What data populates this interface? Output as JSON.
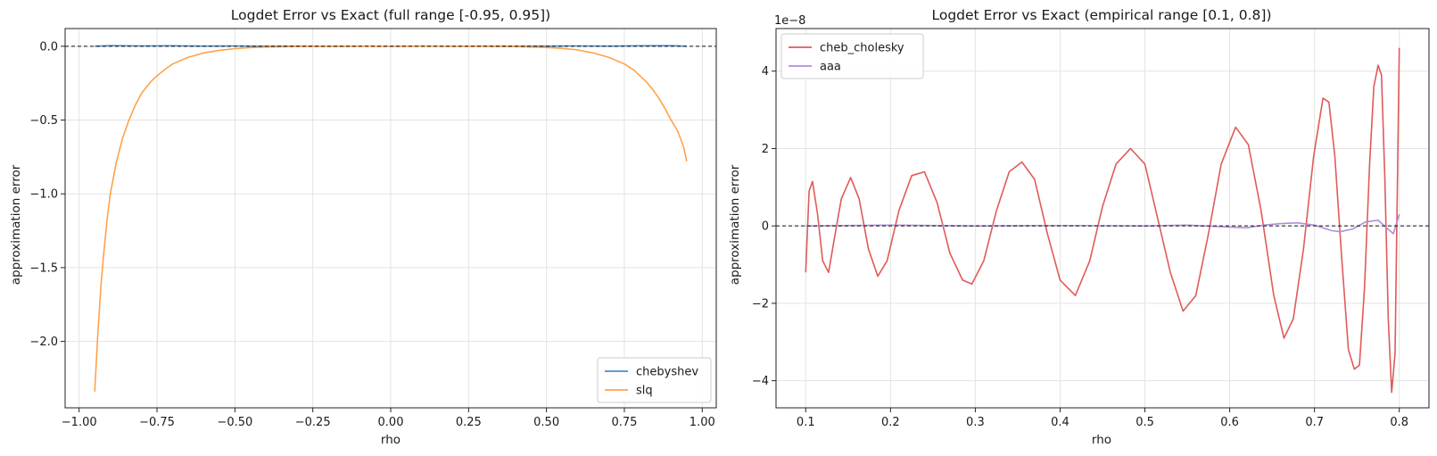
{
  "chart_data": [
    {
      "type": "line",
      "title": "Logdet Error vs Exact (full range [-0.95, 0.95])",
      "xlabel": "rho",
      "ylabel": "approximation error",
      "xlim": [
        -1.045,
        1.045
      ],
      "ylim": [
        -2.45,
        0.12
      ],
      "xticks": [
        -1.0,
        -0.75,
        -0.5,
        -0.25,
        0.0,
        0.25,
        0.5,
        0.75,
        1.0
      ],
      "xtick_labels": [
        "−1.00",
        "−0.75",
        "−0.50",
        "−0.25",
        "0.00",
        "0.25",
        "0.50",
        "0.75",
        "1.00"
      ],
      "yticks": [
        0.0,
        -0.5,
        -1.0,
        -1.5,
        -2.0
      ],
      "ytick_labels": [
        "0.0",
        "−0.5",
        "−1.0",
        "−1.5",
        "−2.0"
      ],
      "grid": true,
      "reference_line": 0,
      "legend_position": "lower-right",
      "series": [
        {
          "name": "chebyshev",
          "color": "#4a8fca",
          "x": [
            -0.95,
            -0.9,
            -0.8,
            -0.7,
            -0.6,
            -0.5,
            -0.4,
            -0.3,
            -0.2,
            -0.1,
            0.0,
            0.1,
            0.2,
            0.3,
            0.4,
            0.5,
            0.6,
            0.7,
            0.8,
            0.9,
            0.95
          ],
          "y": [
            0.0,
            0.004,
            0.002,
            0.003,
            0.001,
            0.002,
            0.0,
            0.001,
            0.0,
            0.001,
            0.0,
            0.001,
            0.0,
            0.001,
            0.0,
            0.001,
            0.002,
            0.001,
            0.003,
            0.004,
            0.0
          ]
        },
        {
          "name": "slq",
          "color": "#ffa24a",
          "x": [
            -0.95,
            -0.94,
            -0.93,
            -0.92,
            -0.91,
            -0.9,
            -0.88,
            -0.86,
            -0.84,
            -0.82,
            -0.8,
            -0.77,
            -0.75,
            -0.72,
            -0.7,
            -0.65,
            -0.6,
            -0.55,
            -0.5,
            -0.45,
            -0.4,
            -0.3,
            -0.2,
            -0.1,
            0.0,
            0.1,
            0.2,
            0.3,
            0.4,
            0.5,
            0.55,
            0.6,
            0.65,
            0.7,
            0.75,
            0.78,
            0.8,
            0.82,
            0.84,
            0.86,
            0.88,
            0.9,
            0.92,
            0.94,
            0.95
          ],
          "y": [
            -2.34,
            -1.95,
            -1.62,
            -1.38,
            -1.17,
            -1.0,
            -0.78,
            -0.62,
            -0.5,
            -0.4,
            -0.32,
            -0.24,
            -0.2,
            -0.15,
            -0.12,
            -0.075,
            -0.045,
            -0.028,
            -0.016,
            -0.009,
            -0.005,
            -0.0015,
            -0.0005,
            -0.0001,
            0.0,
            0.0,
            0.0,
            -0.0005,
            -0.002,
            -0.008,
            -0.014,
            -0.025,
            -0.045,
            -0.075,
            -0.12,
            -0.16,
            -0.2,
            -0.24,
            -0.29,
            -0.35,
            -0.42,
            -0.5,
            -0.57,
            -0.68,
            -0.78
          ]
        }
      ]
    },
    {
      "type": "line",
      "title": "Logdet Error vs Exact (empirical range [0.1, 0.8])",
      "xlabel": "rho",
      "ylabel": "approximation error",
      "y_multiplier_label": "1e−8",
      "xlim": [
        0.065,
        0.835
      ],
      "ylim": [
        -4.7,
        5.1
      ],
      "xticks": [
        0.1,
        0.2,
        0.3,
        0.4,
        0.5,
        0.6,
        0.7,
        0.8
      ],
      "xtick_labels": [
        "0.1",
        "0.2",
        "0.3",
        "0.4",
        "0.5",
        "0.6",
        "0.7",
        "0.8"
      ],
      "yticks": [
        4,
        2,
        0,
        -2,
        -4
      ],
      "ytick_labels": [
        "4",
        "2",
        "0",
        "−2",
        "−4"
      ],
      "grid": true,
      "reference_line": 0,
      "legend_position": "top-left",
      "series": [
        {
          "name": "cheb_cholesky",
          "color": "#e05a5a",
          "x": [
            0.1,
            0.104,
            0.108,
            0.114,
            0.12,
            0.127,
            0.134,
            0.142,
            0.153,
            0.163,
            0.174,
            0.185,
            0.196,
            0.21,
            0.225,
            0.24,
            0.255,
            0.27,
            0.285,
            0.296,
            0.31,
            0.325,
            0.34,
            0.355,
            0.37,
            0.385,
            0.4,
            0.418,
            0.435,
            0.45,
            0.466,
            0.483,
            0.5,
            0.515,
            0.53,
            0.545,
            0.56,
            0.575,
            0.59,
            0.607,
            0.622,
            0.637,
            0.652,
            0.664,
            0.675,
            0.687,
            0.699,
            0.71,
            0.717,
            0.724,
            0.732,
            0.74,
            0.747,
            0.753,
            0.759,
            0.765,
            0.77,
            0.775,
            0.779,
            0.783,
            0.787,
            0.791,
            0.795,
            0.8
          ],
          "y": [
            -1.2,
            0.9,
            1.15,
            0.3,
            -0.9,
            -1.2,
            -0.3,
            0.7,
            1.25,
            0.7,
            -0.6,
            -1.3,
            -0.9,
            0.4,
            1.3,
            1.4,
            0.6,
            -0.7,
            -1.4,
            -1.5,
            -0.9,
            0.4,
            1.4,
            1.65,
            1.2,
            -0.2,
            -1.4,
            -1.8,
            -0.9,
            0.5,
            1.6,
            2.0,
            1.6,
            0.2,
            -1.2,
            -2.2,
            -1.8,
            -0.2,
            1.6,
            2.55,
            2.1,
            0.4,
            -1.8,
            -2.9,
            -2.4,
            -0.6,
            1.8,
            3.3,
            3.2,
            1.8,
            -0.8,
            -3.2,
            -3.7,
            -3.6,
            -1.6,
            1.6,
            3.6,
            4.15,
            3.9,
            1.2,
            -2.4,
            -4.3,
            -3.3,
            4.6
          ]
        },
        {
          "name": "aaa",
          "color": "#b08fd6",
          "x": [
            0.1,
            0.2,
            0.3,
            0.4,
            0.5,
            0.55,
            0.6,
            0.62,
            0.64,
            0.66,
            0.68,
            0.7,
            0.72,
            0.73,
            0.745,
            0.76,
            0.775,
            0.785,
            0.793,
            0.8
          ],
          "y": [
            0.0,
            0.02,
            0.0,
            0.01,
            0.0,
            0.02,
            -0.03,
            -0.05,
            0.02,
            0.06,
            0.08,
            0.02,
            -0.12,
            -0.15,
            -0.08,
            0.1,
            0.15,
            -0.05,
            -0.2,
            0.3
          ]
        }
      ]
    }
  ]
}
